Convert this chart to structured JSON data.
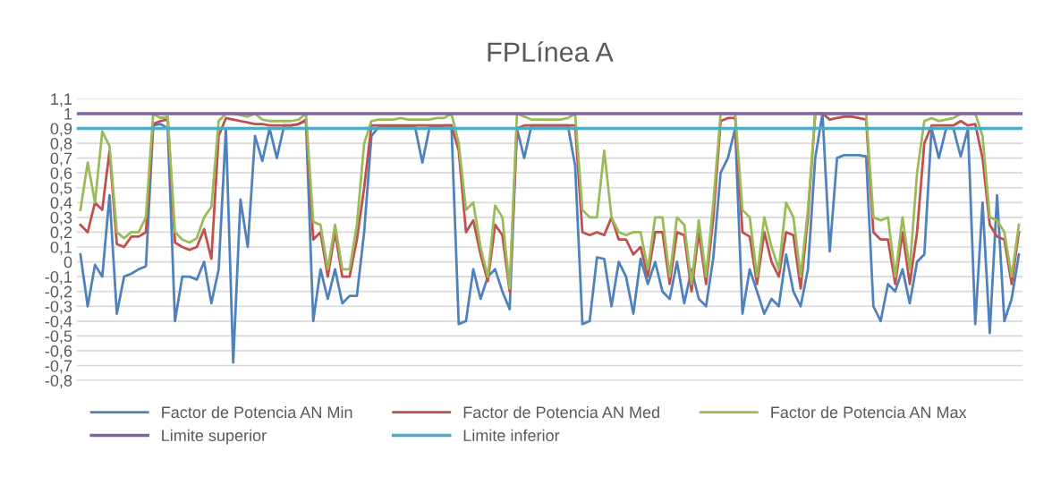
{
  "chart_data": {
    "type": "line",
    "title": "FPLínea A",
    "categories": [
      null,
      null,
      null,
      null,
      null,
      null,
      null,
      null,
      null,
      null,
      null,
      null,
      null,
      null,
      null,
      null,
      null,
      null,
      null,
      null,
      null,
      null,
      null,
      null,
      null,
      null,
      null,
      null,
      null,
      null,
      null,
      null,
      null,
      null,
      null,
      null,
      null,
      null,
      null,
      null,
      null,
      null,
      null,
      null,
      null,
      null,
      null,
      null,
      null,
      null,
      null,
      null,
      null,
      null,
      null,
      null,
      null,
      null,
      null,
      null,
      null,
      null,
      null,
      null,
      null,
      null,
      null,
      null,
      null,
      null,
      null,
      null,
      null,
      null,
      null,
      null,
      null,
      null,
      null,
      null,
      null,
      null,
      null,
      null,
      null,
      null,
      null,
      null,
      null,
      null,
      null,
      null,
      null,
      null,
      null,
      null,
      null,
      null,
      null,
      null,
      null,
      null,
      null,
      null,
      null,
      null,
      null,
      null,
      null,
      null,
      null,
      null,
      null,
      null,
      null,
      null,
      null,
      null,
      null,
      null,
      null,
      null,
      null,
      null,
      null,
      null,
      null,
      null,
      null,
      null
    ],
    "series": [
      {
        "name": "Factor de Potencia AN Min",
        "color": "#4f81bd",
        "values": [
          0.05,
          -0.3,
          -0.02,
          -0.1,
          0.45,
          -0.35,
          -0.1,
          -0.08,
          -0.05,
          -0.03,
          0.92,
          0.93,
          0.9,
          -0.4,
          -0.1,
          -0.1,
          -0.12,
          0.0,
          -0.28,
          -0.05,
          0.9,
          -0.68,
          0.42,
          0.1,
          0.85,
          0.68,
          0.9,
          0.7,
          0.92,
          0.92,
          0.93,
          0.95,
          -0.4,
          -0.05,
          -0.25,
          -0.05,
          -0.28,
          -0.23,
          -0.23,
          0.2,
          0.85,
          0.91,
          0.91,
          0.91,
          0.91,
          0.91,
          0.91,
          0.67,
          0.91,
          0.91,
          0.92,
          0.92,
          -0.42,
          -0.4,
          -0.05,
          -0.25,
          -0.1,
          -0.05,
          -0.2,
          -0.32,
          0.9,
          0.7,
          0.92,
          0.92,
          0.92,
          0.92,
          0.92,
          0.92,
          0.65,
          -0.42,
          -0.4,
          0.03,
          0.02,
          -0.3,
          0.0,
          -0.1,
          -0.35,
          0.02,
          -0.15,
          0.0,
          -0.2,
          -0.25,
          0.0,
          -0.28,
          -0.05,
          -0.25,
          -0.3,
          0.03,
          0.6,
          0.7,
          0.9,
          -0.35,
          -0.05,
          -0.2,
          -0.35,
          -0.25,
          -0.3,
          0.05,
          -0.2,
          -0.3,
          -0.05,
          0.7,
          1.0,
          0.07,
          0.7,
          0.72,
          0.72,
          0.72,
          0.71,
          -0.3,
          -0.4,
          -0.15,
          -0.2,
          -0.05,
          -0.28,
          0.0,
          0.05,
          0.9,
          0.7,
          0.9,
          0.9,
          0.71,
          0.9,
          -0.42,
          0.4,
          -0.48,
          0.45,
          -0.4,
          -0.25,
          0.05
        ]
      },
      {
        "name": "Factor de Potencia AN Med",
        "color": "#c0504d",
        "values": [
          0.25,
          0.2,
          0.4,
          0.35,
          0.75,
          0.12,
          0.1,
          0.17,
          0.17,
          0.2,
          0.93,
          0.95,
          0.96,
          0.13,
          0.1,
          0.08,
          0.1,
          0.22,
          0.02,
          0.85,
          0.97,
          0.96,
          0.95,
          0.94,
          0.93,
          0.93,
          0.92,
          0.92,
          0.92,
          0.92,
          0.93,
          0.96,
          0.15,
          0.2,
          -0.1,
          0.2,
          -0.1,
          -0.1,
          0.15,
          0.5,
          0.92,
          0.92,
          0.92,
          0.92,
          0.92,
          0.92,
          0.92,
          0.92,
          0.92,
          0.92,
          0.92,
          0.92,
          0.75,
          0.2,
          0.28,
          0.05,
          -0.13,
          0.25,
          0.18,
          -0.2,
          0.9,
          0.92,
          0.92,
          0.92,
          0.92,
          0.92,
          0.92,
          0.92,
          0.92,
          0.2,
          0.18,
          0.2,
          0.18,
          0.3,
          0.15,
          0.15,
          0.05,
          0.1,
          -0.1,
          0.2,
          0.2,
          -0.15,
          0.2,
          0.18,
          -0.2,
          0.2,
          -0.15,
          0.3,
          0.95,
          0.97,
          0.97,
          0.2,
          0.17,
          -0.15,
          0.2,
          0.0,
          -0.1,
          0.2,
          0.18,
          -0.18,
          0.3,
          1,
          1,
          0.96,
          0.97,
          0.98,
          0.98,
          0.97,
          0.96,
          0.2,
          0.15,
          0.15,
          -0.15,
          0.2,
          -0.15,
          0.2,
          0.8,
          0.92,
          0.92,
          0.92,
          0.92,
          0.95,
          0.92,
          0.93,
          0.7,
          0.25,
          0.17,
          0.15,
          -0.15,
          0.2
        ]
      },
      {
        "name": "Factor de Potencia AN Max",
        "color": "#9bbb59",
        "values": [
          0.35,
          0.67,
          0.4,
          0.88,
          0.78,
          0.2,
          0.16,
          0.2,
          0.2,
          0.3,
          1.0,
          0.97,
          0.98,
          0.2,
          0.15,
          0.13,
          0.16,
          0.3,
          0.37,
          0.95,
          1,
          1,
          0.99,
          0.98,
          1,
          0.96,
          0.95,
          0.95,
          0.95,
          0.95,
          0.96,
          1,
          0.27,
          0.25,
          -0.05,
          0.25,
          -0.05,
          -0.05,
          0.25,
          0.8,
          0.95,
          0.96,
          0.96,
          0.96,
          0.97,
          0.96,
          0.96,
          0.96,
          0.96,
          0.97,
          0.97,
          1,
          0.8,
          0.35,
          0.4,
          0.1,
          -0.1,
          0.38,
          0.3,
          -0.18,
          1,
          0.98,
          0.96,
          0.96,
          0.96,
          0.96,
          0.96,
          0.97,
          1,
          0.35,
          0.3,
          0.3,
          0.75,
          0.3,
          0.2,
          0.18,
          0.2,
          0.2,
          -0.05,
          0.3,
          0.3,
          -0.1,
          0.3,
          0.25,
          -0.15,
          0.28,
          -0.1,
          0.4,
          1,
          1,
          1,
          0.35,
          0.3,
          -0.1,
          0.3,
          0.1,
          -0.05,
          0.4,
          0.3,
          -0.1,
          0.35,
          1,
          1,
          1,
          1,
          1,
          1,
          1,
          1,
          0.3,
          0.28,
          0.3,
          -0.1,
          0.3,
          -0.05,
          0.6,
          0.95,
          0.97,
          0.95,
          0.96,
          0.97,
          1,
          1,
          1,
          0.85,
          0.3,
          0.28,
          0.2,
          -0.1,
          0.25
        ]
      }
    ],
    "ref_lines": [
      {
        "axis": "y",
        "value": 1,
        "label": "Limite superior",
        "color": "#8064a2"
      },
      {
        "axis": "y",
        "value": 0.9,
        "label": "Limite inferior",
        "color": "#4bacc6"
      }
    ],
    "ylim": [
      -0.8,
      1.1
    ],
    "yticks": [
      {
        "value": -0.8,
        "label": "-0,8"
      },
      {
        "value": -0.7,
        "label": "-0,7"
      },
      {
        "value": -0.6,
        "label": "-0,6"
      },
      {
        "value": -0.5,
        "label": "-0,5"
      },
      {
        "value": -0.4,
        "label": "-0,4"
      },
      {
        "value": -0.3,
        "label": "-0,3"
      },
      {
        "value": -0.2,
        "label": "-0,2"
      },
      {
        "value": -0.1,
        "label": "-0,1"
      },
      0,
      {
        "value": 0.1,
        "label": "0,1"
      },
      {
        "value": 0.2,
        "label": "0,2"
      },
      {
        "value": 0.3,
        "label": "0,3"
      },
      {
        "value": 0.4,
        "label": "0,4"
      },
      {
        "value": 0.5,
        "label": "0,5"
      },
      {
        "value": 0.6,
        "label": "0,6"
      },
      {
        "value": 0.7,
        "label": "0,7"
      },
      {
        "value": 0.8,
        "label": "0,8"
      },
      {
        "value": 0.9,
        "label": "0,9"
      },
      1,
      {
        "value": 1.1,
        "label": "1,1"
      }
    ],
    "grid": "y",
    "legend": "bottom",
    "tick_labels": "y",
    "marker": "none",
    "line_style": "solid"
  }
}
